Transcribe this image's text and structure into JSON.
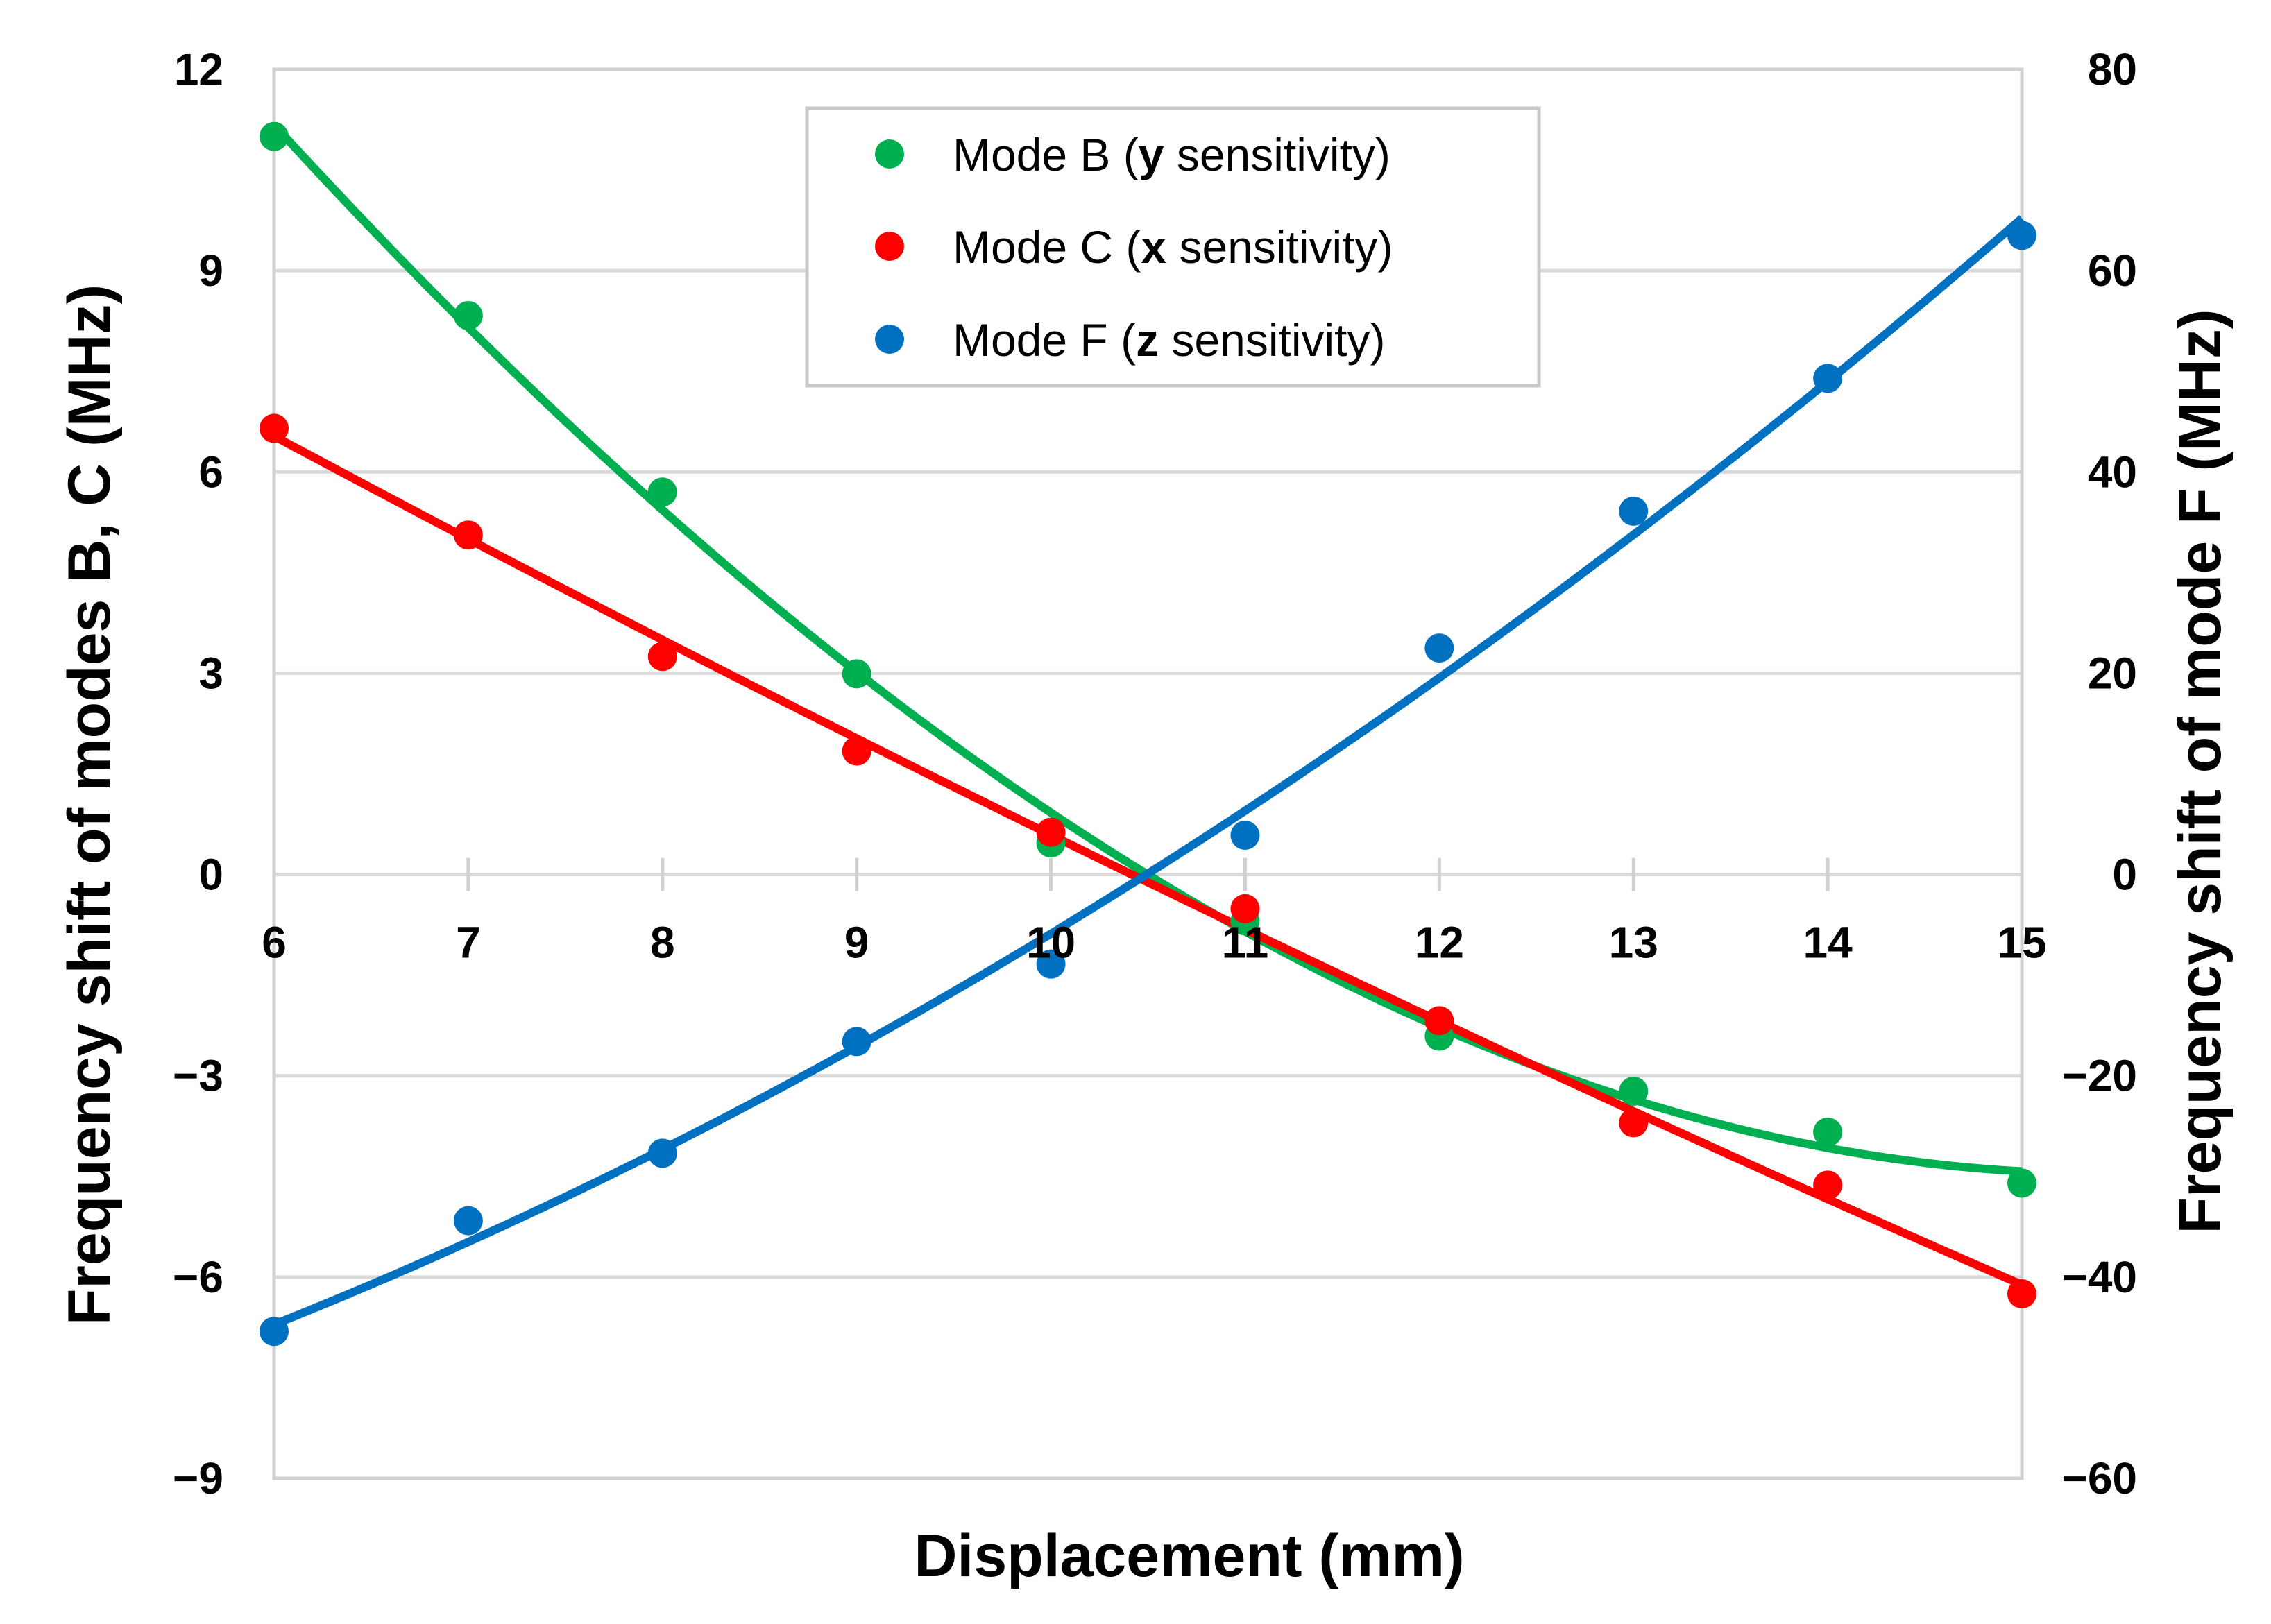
{
  "chart_data": {
    "type": "scatter",
    "title": "",
    "xlabel": "Displacement (mm)",
    "ylabel": "Frequency shift of modes B, C (MHz)",
    "y2label": "Frequency shift of mode F (MHz)",
    "x": [
      6,
      7,
      8,
      9,
      10,
      11,
      12,
      13,
      14,
      15
    ],
    "xlim": [
      6,
      15
    ],
    "ylim": [
      -9,
      12
    ],
    "y2lim": [
      -60,
      80
    ],
    "xticks": [
      "6",
      "7",
      "8",
      "9",
      "10",
      "11",
      "12",
      "13",
      "14",
      "15"
    ],
    "yticks": [
      "12",
      "9",
      "6",
      "3",
      "0",
      "−3",
      "−6",
      "−9"
    ],
    "y2ticks": [
      "80",
      "60",
      "40",
      "20",
      "0",
      "−20",
      "−40",
      "−60"
    ],
    "grid": true,
    "legend_position": "top-center",
    "series": [
      {
        "name": "Mode B (y sensitivity)",
        "label_prefix": "Mode B (",
        "label_var": "y",
        "label_suffix": " sensitivity)",
        "axis": "left",
        "color": "#00B050",
        "values": [
          11.0,
          8.33,
          5.7,
          2.99,
          0.47,
          -0.69,
          -2.41,
          -3.23,
          -3.84,
          -4.6
        ],
        "trendline": "polynomial-3"
      },
      {
        "name": "Mode C (x sensitivity)",
        "label_prefix": "Mode C (",
        "label_var": "x",
        "label_suffix": " sensitivity)",
        "axis": "left",
        "color": "#FF0000",
        "values": [
          6.65,
          5.06,
          3.25,
          1.84,
          0.63,
          -0.51,
          -2.18,
          -3.7,
          -4.63,
          -6.25
        ],
        "trendline": "polynomial-2"
      },
      {
        "name": "Mode F (z sensitivity)",
        "label_prefix": "Mode F (",
        "label_var": "z",
        "label_suffix": " sensitivity)",
        "axis": "right",
        "color": "#0070C0",
        "values": [
          -45.4,
          -34.4,
          -27.7,
          -16.6,
          -8.9,
          3.9,
          22.5,
          36.1,
          49.3,
          63.5
        ],
        "trendline": "polynomial-2"
      }
    ]
  }
}
